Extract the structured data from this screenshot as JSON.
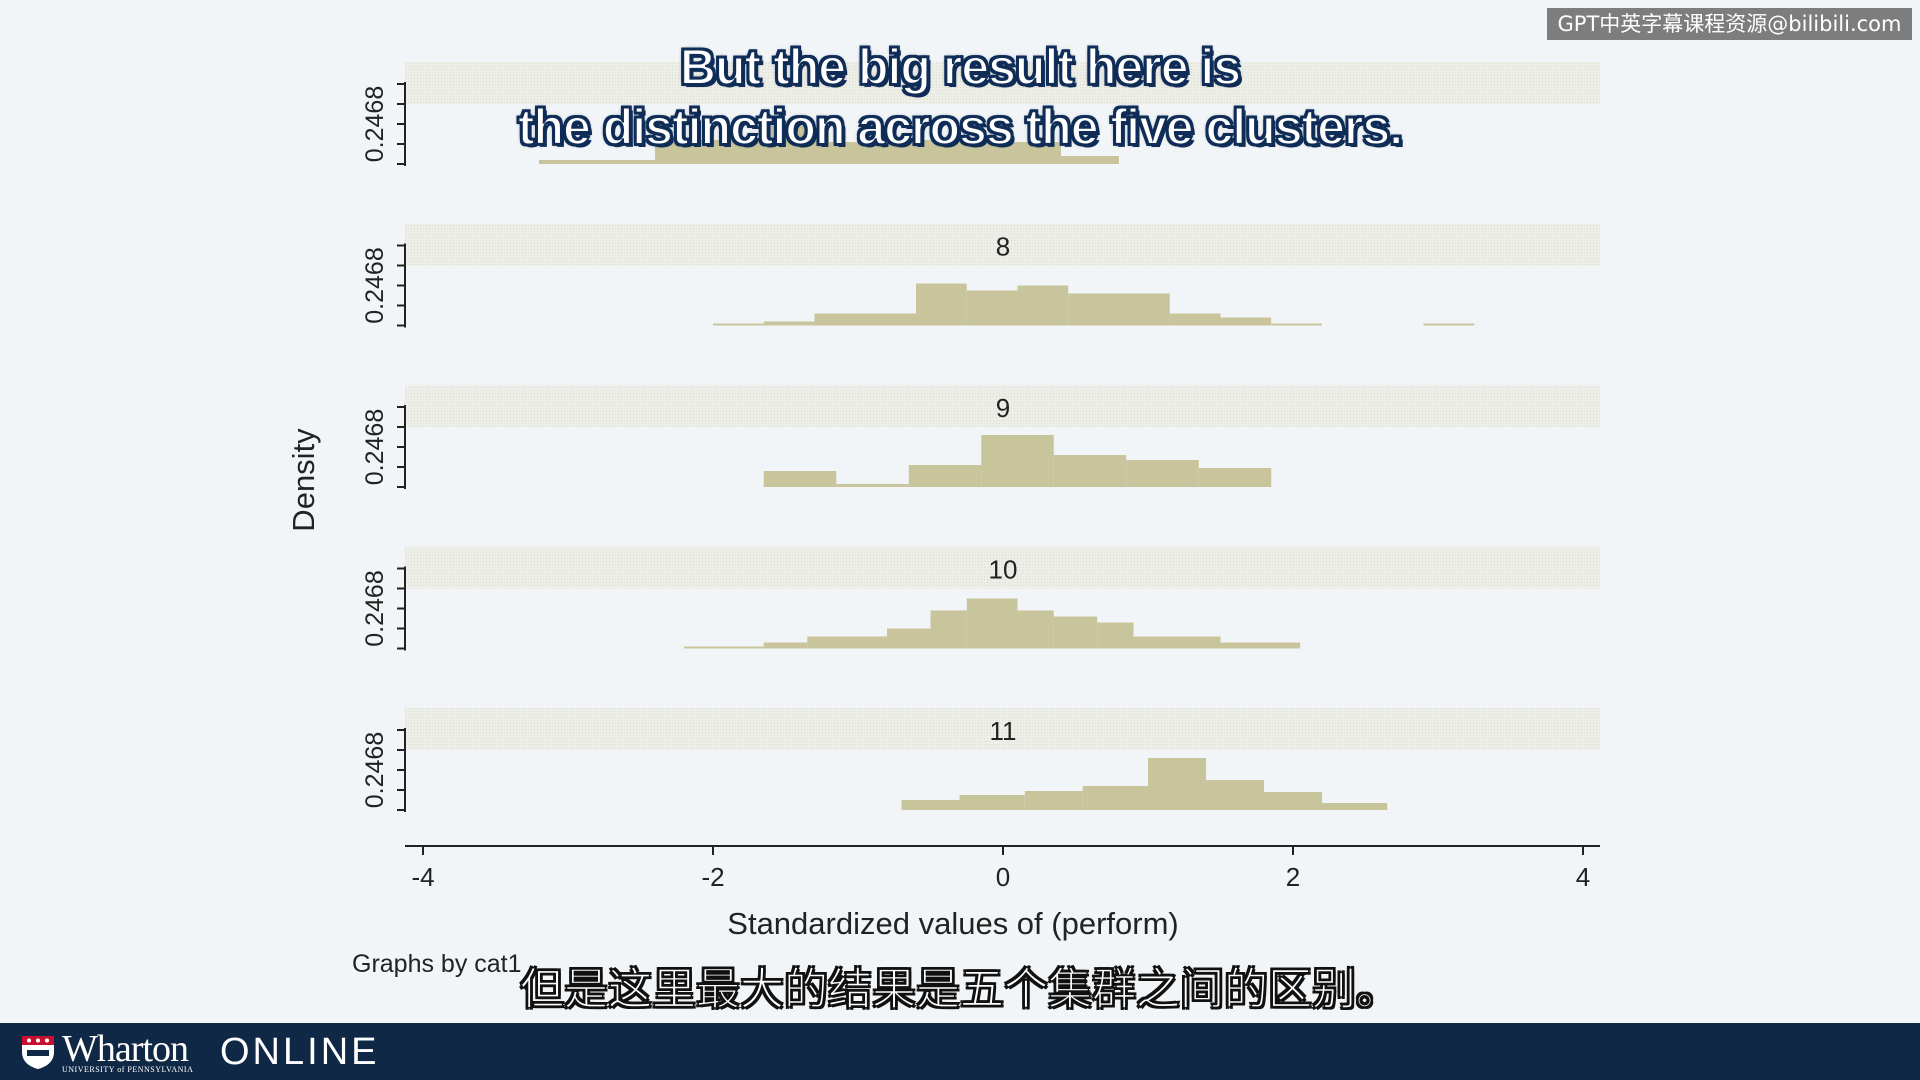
{
  "watermark": "GPT中英字幕课程资源@bilibili.com",
  "subtitles": {
    "en_line1": "But the big result here is",
    "en_line2": "the distinction across the five clusters.",
    "zh": "但是这里最大的结果是五个集群之间的区别。"
  },
  "footer": {
    "brand": "Wharton",
    "brand_sub": "UNIVERSITY of PENNSYLVANIA",
    "online": "ONLINE"
  },
  "chart_data": {
    "type": "bar",
    "subtype": "histogram",
    "xlabel": "Standardized values of (perform)",
    "ylabel": "Density",
    "note": "Graphs by cat1",
    "xlim": [
      -4,
      4
    ],
    "xticks": [
      "-4",
      "-2",
      "0",
      "2",
      "4"
    ],
    "ylim": [
      0,
      0.8
    ],
    "ytick_label": "0.2468",
    "bar_color": "#c8c59c",
    "panels": [
      {
        "label": "",
        "bins": [
          {
            "x0": -3.2,
            "x1": -2.4,
            "y": 0.04
          },
          {
            "x0": -2.4,
            "x1": -1.6,
            "y": 0.24
          },
          {
            "x0": -1.6,
            "x1": -1.2,
            "y": 0.38
          },
          {
            "x0": -1.2,
            "x1": -0.8,
            "y": 0.22
          },
          {
            "x0": -0.8,
            "x1": -0.4,
            "y": 0.24
          },
          {
            "x0": -0.4,
            "x1": 0.4,
            "y": 0.22
          },
          {
            "x0": 0.4,
            "x1": 0.8,
            "y": 0.08
          }
        ]
      },
      {
        "label": "8",
        "bins": [
          {
            "x0": -2.0,
            "x1": -1.65,
            "y": 0.02
          },
          {
            "x0": -1.65,
            "x1": -1.3,
            "y": 0.04
          },
          {
            "x0": -1.3,
            "x1": -0.6,
            "y": 0.12
          },
          {
            "x0": -0.6,
            "x1": -0.25,
            "y": 0.42
          },
          {
            "x0": -0.25,
            "x1": 0.1,
            "y": 0.35
          },
          {
            "x0": 0.1,
            "x1": 0.45,
            "y": 0.4
          },
          {
            "x0": 0.45,
            "x1": 1.15,
            "y": 0.32
          },
          {
            "x0": 1.15,
            "x1": 1.5,
            "y": 0.12
          },
          {
            "x0": 1.5,
            "x1": 1.85,
            "y": 0.08
          },
          {
            "x0": 1.85,
            "x1": 2.2,
            "y": 0.02
          },
          {
            "x0": 2.9,
            "x1": 3.25,
            "y": 0.02
          }
        ]
      },
      {
        "label": "9",
        "bins": [
          {
            "x0": -1.65,
            "x1": -1.15,
            "y": 0.16
          },
          {
            "x0": -1.15,
            "x1": -0.65,
            "y": 0.03
          },
          {
            "x0": -0.65,
            "x1": -0.15,
            "y": 0.22
          },
          {
            "x0": -0.15,
            "x1": 0.35,
            "y": 0.52
          },
          {
            "x0": 0.35,
            "x1": 0.85,
            "y": 0.32
          },
          {
            "x0": 0.85,
            "x1": 1.35,
            "y": 0.27
          },
          {
            "x0": 1.35,
            "x1": 1.85,
            "y": 0.19
          }
        ]
      },
      {
        "label": "10",
        "bins": [
          {
            "x0": -2.2,
            "x1": -1.65,
            "y": 0.02
          },
          {
            "x0": -1.65,
            "x1": -1.35,
            "y": 0.06
          },
          {
            "x0": -1.35,
            "x1": -0.8,
            "y": 0.12
          },
          {
            "x0": -0.8,
            "x1": -0.5,
            "y": 0.2
          },
          {
            "x0": -0.5,
            "x1": -0.25,
            "y": 0.38
          },
          {
            "x0": -0.25,
            "x1": 0.1,
            "y": 0.5
          },
          {
            "x0": 0.1,
            "x1": 0.35,
            "y": 0.38
          },
          {
            "x0": 0.35,
            "x1": 0.65,
            "y": 0.32
          },
          {
            "x0": 0.65,
            "x1": 0.9,
            "y": 0.26
          },
          {
            "x0": 0.9,
            "x1": 1.5,
            "y": 0.12
          },
          {
            "x0": 1.5,
            "x1": 1.5,
            "y": 0
          },
          {
            "x0": 1.5,
            "x1": 2.05,
            "y": 0.06
          }
        ]
      },
      {
        "label": "11",
        "bins": [
          {
            "x0": -0.7,
            "x1": -0.3,
            "y": 0.1
          },
          {
            "x0": -0.3,
            "x1": 0.15,
            "y": 0.15
          },
          {
            "x0": 0.15,
            "x1": 0.55,
            "y": 0.19
          },
          {
            "x0": 0.55,
            "x1": 1.0,
            "y": 0.24
          },
          {
            "x0": 1.0,
            "x1": 1.4,
            "y": 0.52
          },
          {
            "x0": 1.4,
            "x1": 1.8,
            "y": 0.3
          },
          {
            "x0": 1.8,
            "x1": 2.2,
            "y": 0.18
          },
          {
            "x0": 2.2,
            "x1": 2.65,
            "y": 0.07
          }
        ]
      }
    ]
  }
}
